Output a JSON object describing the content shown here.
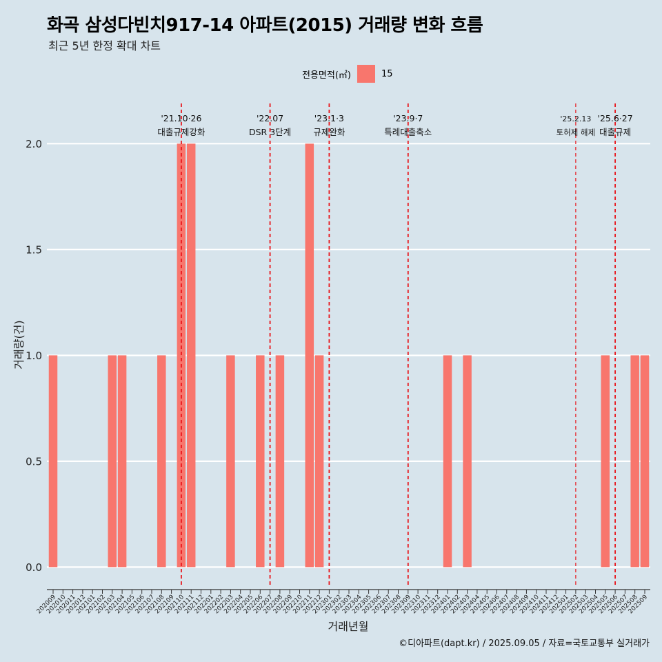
{
  "title": "화곡 삼성다빈치917-14 아파트(2015) 거래량 변화 흐름",
  "subtitle": "최근 5년 한정 확대 차트",
  "caption": "©디아파트(dapt.kr) / 2025.09.05 / 자료=국토교통부 실거래가",
  "colors": {
    "bar": "#f8766d",
    "event_line": "#e8141a",
    "background": "#d7e4ec"
  },
  "chart_data": {
    "type": "bar",
    "title": "화곡 삼성다빈치917-14 아파트(2015) 거래량 변화 흐름",
    "subtitle": "최근 5년 한정 확대 차트",
    "xlabel": "거래년월",
    "ylabel": "거래량(건)",
    "ylim": [
      -0.09,
      2.19
    ],
    "yticks": [
      0.0,
      0.5,
      1.0,
      1.5,
      2.0
    ],
    "ytick_labels": [
      "0.0",
      "0.5",
      "1.0",
      "1.5",
      "2.0"
    ],
    "legend": {
      "title": "전용면적(㎡)",
      "entries": [
        "15"
      ],
      "position": "top"
    },
    "categories": [
      "202009",
      "202010",
      "202011",
      "202012",
      "202101",
      "202102",
      "202103",
      "202104",
      "202105",
      "202106",
      "202107",
      "202108",
      "202109",
      "202110",
      "202111",
      "202112",
      "202201",
      "202202",
      "202203",
      "202204",
      "202205",
      "202206",
      "202207",
      "202208",
      "202209",
      "202210",
      "202211",
      "202212",
      "202301",
      "202302",
      "202303",
      "202304",
      "202305",
      "202306",
      "202307",
      "202308",
      "202309",
      "202310",
      "202311",
      "202312",
      "202401",
      "202402",
      "202403",
      "202404",
      "202405",
      "202406",
      "202407",
      "202408",
      "202409",
      "202410",
      "202411",
      "202412",
      "202501",
      "202502",
      "202503",
      "202504",
      "202505",
      "202506",
      "202507",
      "202508",
      "202509"
    ],
    "series": [
      {
        "name": "15",
        "values": [
          1,
          0,
          0,
          0,
          0,
          0,
          1,
          1,
          0,
          0,
          0,
          1,
          0,
          2,
          2,
          0,
          0,
          0,
          1,
          0,
          0,
          1,
          0,
          1,
          0,
          0,
          2,
          1,
          0,
          0,
          0,
          0,
          0,
          0,
          0,
          0,
          0,
          0,
          0,
          0,
          1,
          0,
          1,
          0,
          0,
          0,
          0,
          0,
          0,
          0,
          0,
          0,
          0,
          0,
          0,
          0,
          1,
          0,
          0,
          1,
          1
        ]
      }
    ],
    "events": [
      {
        "index": 13.0,
        "date": "'21.10·26",
        "label": "대출규제강화",
        "size": "normal"
      },
      {
        "index": 22.0,
        "date": "'22.07",
        "label": "DSR 3단계",
        "size": "normal"
      },
      {
        "index": 28.0,
        "date": "'23.1·3",
        "label": "규제완화",
        "size": "normal"
      },
      {
        "index": 36.0,
        "date": "'23.9·7",
        "label": "특례대출축소",
        "size": "normal"
      },
      {
        "index": 53.0,
        "date": "'25.2.13",
        "label": "토허제 해제",
        "size": "small"
      },
      {
        "index": 57.0,
        "date": "'25.6·27",
        "label": "대출규제",
        "size": "normal"
      }
    ]
  }
}
